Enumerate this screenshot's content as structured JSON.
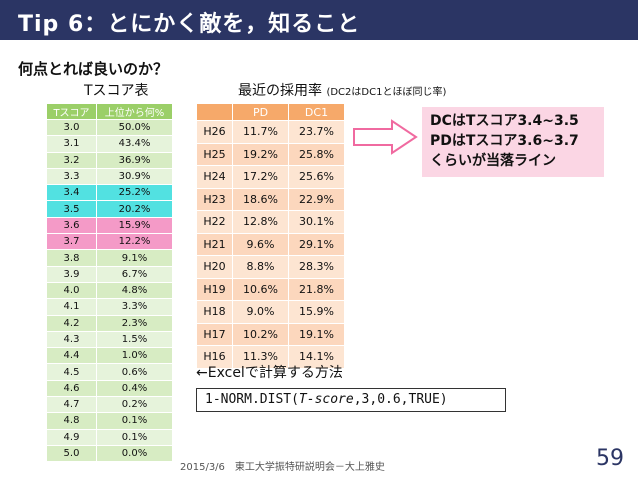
{
  "title": "Tip 6：とにかく敵を，知ること",
  "question": "何点とれば良いのか？",
  "tscore": {
    "label": "Tスコア表",
    "headers": [
      "Tスコア",
      "上位から何%"
    ],
    "rows": [
      {
        "t": "3.0",
        "p": "50.0%",
        "hl": ""
      },
      {
        "t": "3.1",
        "p": "43.4%",
        "hl": ""
      },
      {
        "t": "3.2",
        "p": "36.9%",
        "hl": ""
      },
      {
        "t": "3.3",
        "p": "30.9%",
        "hl": ""
      },
      {
        "t": "3.4",
        "p": "25.2%",
        "hl": "cyan"
      },
      {
        "t": "3.5",
        "p": "20.2%",
        "hl": "cyan"
      },
      {
        "t": "3.6",
        "p": "15.9%",
        "hl": "pink"
      },
      {
        "t": "3.7",
        "p": "12.2%",
        "hl": "pink"
      },
      {
        "t": "3.8",
        "p": "9.1%",
        "hl": ""
      },
      {
        "t": "3.9",
        "p": "6.7%",
        "hl": ""
      },
      {
        "t": "4.0",
        "p": "4.8%",
        "hl": ""
      },
      {
        "t": "4.1",
        "p": "3.3%",
        "hl": ""
      },
      {
        "t": "4.2",
        "p": "2.3%",
        "hl": ""
      },
      {
        "t": "4.3",
        "p": "1.5%",
        "hl": ""
      },
      {
        "t": "4.4",
        "p": "1.0%",
        "hl": ""
      },
      {
        "t": "4.5",
        "p": "0.6%",
        "hl": ""
      },
      {
        "t": "4.6",
        "p": "0.4%",
        "hl": ""
      },
      {
        "t": "4.7",
        "p": "0.2%",
        "hl": ""
      },
      {
        "t": "4.8",
        "p": "0.1%",
        "hl": ""
      },
      {
        "t": "4.9",
        "p": "0.1%",
        "hl": ""
      },
      {
        "t": "5.0",
        "p": "0.0%",
        "hl": ""
      }
    ],
    "colors": {
      "header": "#9bcf68",
      "cyan": "#52e1e1",
      "pink": "#f49ac7"
    }
  },
  "rates": {
    "label": "最近の採用率",
    "note": "(DC2はDC1とほぼ同じ率)",
    "headers": [
      "",
      "PD",
      "DC1"
    ],
    "rows": [
      {
        "y": "H26",
        "pd": "11.7%",
        "dc1": "23.7%"
      },
      {
        "y": "H25",
        "pd": "19.2%",
        "dc1": "25.8%"
      },
      {
        "y": "H24",
        "pd": "17.2%",
        "dc1": "25.6%"
      },
      {
        "y": "H23",
        "pd": "18.6%",
        "dc1": "22.9%"
      },
      {
        "y": "H22",
        "pd": "12.8%",
        "dc1": "30.1%"
      },
      {
        "y": "H21",
        "pd": "9.6%",
        "dc1": "29.1%"
      },
      {
        "y": "H20",
        "pd": "8.8%",
        "dc1": "28.3%"
      },
      {
        "y": "H19",
        "pd": "10.6%",
        "dc1": "21.8%"
      },
      {
        "y": "H18",
        "pd": "9.0%",
        "dc1": "15.9%"
      },
      {
        "y": "H17",
        "pd": "10.2%",
        "dc1": "19.1%"
      },
      {
        "y": "H16",
        "pd": "11.3%",
        "dc1": "14.1%"
      }
    ]
  },
  "callout": {
    "lines": [
      "DCはTスコア3.4~3.5",
      "PDはTスコア3.6~3.7",
      "くらいが当落ライン"
    ]
  },
  "excel_note": "←Excelで計算する方法",
  "formula": "1-NORM.DIST(T-score,3,0.6,TRUE)",
  "footer": "2015/3/6　東工大学振特研説明会－大上雅史",
  "page_number": "59",
  "colors": {
    "title_bar": "#2b3564",
    "callout_bg": "#fbd6e4",
    "arrow": "#f06aa0"
  }
}
